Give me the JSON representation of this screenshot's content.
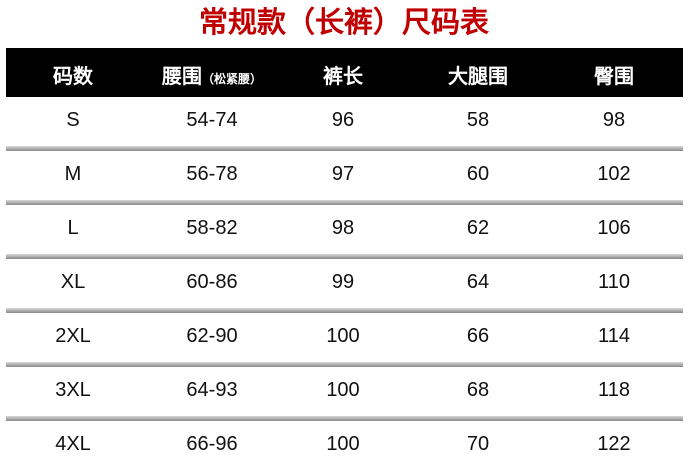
{
  "title": "常规款（长裤）尺码表",
  "headers": [
    "码数",
    "腰围",
    "裤长",
    "大腿围",
    "臀围"
  ],
  "waist_note": "（松紧腰）",
  "rows": [
    [
      "S",
      "54-74",
      "96",
      "58",
      "98"
    ],
    [
      "M",
      "56-78",
      "97",
      "60",
      "102"
    ],
    [
      "L",
      "58-82",
      "98",
      "62",
      "106"
    ],
    [
      "XL",
      "60-86",
      "99",
      "64",
      "110"
    ],
    [
      "2XL",
      "62-90",
      "100",
      "66",
      "114"
    ],
    [
      "3XL",
      "64-93",
      "100",
      "68",
      "118"
    ],
    [
      "4XL",
      "66-96",
      "100",
      "70",
      "122"
    ]
  ],
  "colors": {
    "title": "#c00000",
    "header_bg": "#000000"
  }
}
